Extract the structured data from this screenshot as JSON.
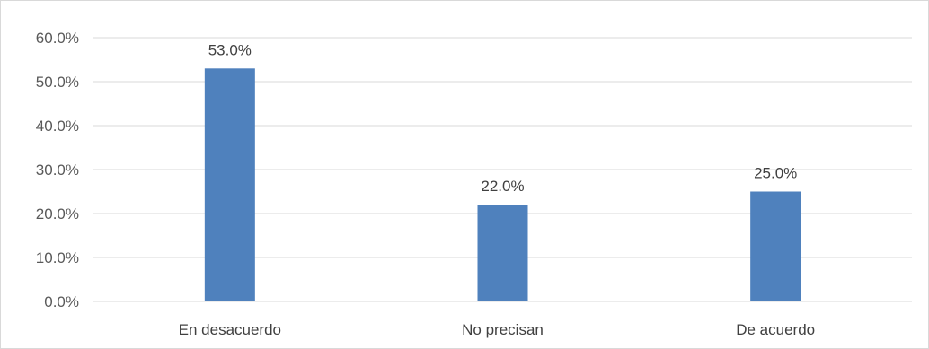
{
  "chart_data": {
    "type": "bar",
    "categories": [
      "En desacuerdo",
      "No precisan",
      "De acuerdo"
    ],
    "values": [
      53.0,
      22.0,
      25.0
    ],
    "data_labels": [
      "53.0%",
      "22.0%",
      "25.0%"
    ],
    "y_ticks": [
      "0.0%",
      "10.0%",
      "20.0%",
      "30.0%",
      "40.0%",
      "50.0%",
      "60.0%"
    ],
    "ylim": [
      0,
      60
    ],
    "grid": true,
    "legend": "none",
    "bar_color": "#4f81bd",
    "grid_color": "#d9d9d9"
  }
}
